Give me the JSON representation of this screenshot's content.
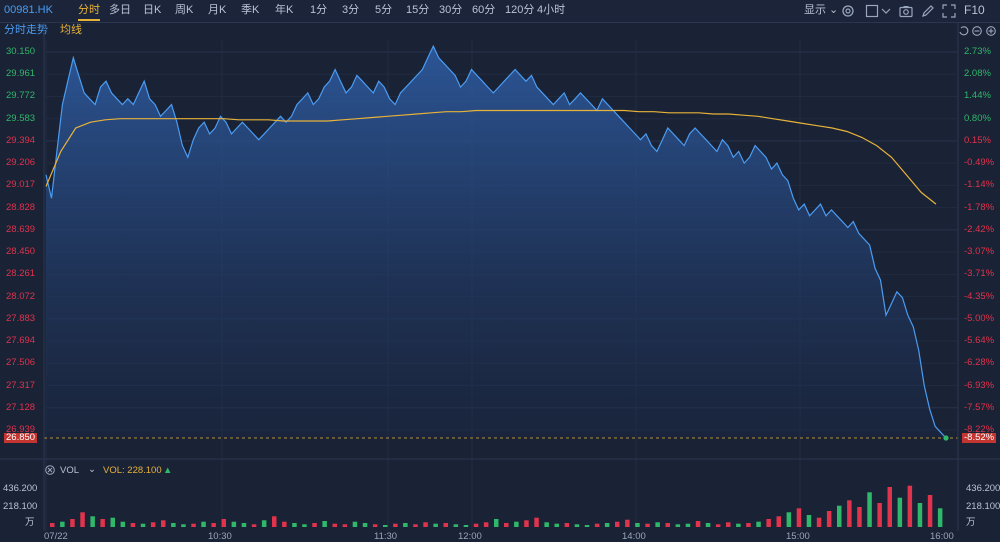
{
  "toolbar": {
    "symbol": "00981.HK",
    "periods": [
      "分时",
      "多日",
      "日K",
      "周K",
      "月K",
      "季K",
      "年K",
      "1分",
      "3分",
      "5分",
      "15分",
      "30分",
      "60分",
      "120分",
      "4小时"
    ],
    "active_period": "分时",
    "display_label": "显示",
    "fit_label": "F10"
  },
  "chart_header": {
    "mode_label": "分时走势",
    "avg_label": "均线"
  },
  "price_axis": {
    "ticks": [
      "30.150",
      "29.961",
      "29.772",
      "29.583",
      "29.394",
      "29.206",
      "29.017",
      "28.828",
      "28.639",
      "28.450",
      "28.261",
      "28.072",
      "27.883",
      "27.694",
      "27.506",
      "27.317",
      "27.128",
      "26.939"
    ],
    "current": "26.850"
  },
  "pct_axis": {
    "ticks": [
      "2.73%",
      "2.08%",
      "1.44%",
      "0.80%",
      "0.15%",
      "-0.49%",
      "-1.14%",
      "-1.78%",
      "-2.42%",
      "-3.07%",
      "-3.71%",
      "-4.35%",
      "-5.00%",
      "-5.64%",
      "-6.28%",
      "-6.93%",
      "-7.57%",
      "-8.22%"
    ],
    "current": "-8.52%"
  },
  "volume": {
    "label": "VOL",
    "value_label": "VOL: 228.100",
    "ticks": [
      "436.200",
      "218.100"
    ],
    "unit": "万"
  },
  "time_axis": [
    "07/22",
    "10:30",
    "11:30",
    "12:00",
    "14:00",
    "15:00",
    "16:00"
  ],
  "colors": {
    "bg": "#1a2235",
    "price_line": "#4a9cf2",
    "avg_line": "#e7b23a",
    "up": "#e0334c",
    "down": "#2fb869",
    "grid": "#253049"
  },
  "chart_data": {
    "type": "line",
    "ylim": [
      26.85,
      30.15
    ],
    "series": [
      {
        "name": "分时走势",
        "values": [
          29.1,
          28.9,
          29.3,
          29.7,
          29.9,
          30.1,
          29.95,
          29.8,
          29.75,
          29.7,
          29.85,
          29.9,
          29.8,
          29.75,
          29.7,
          29.75,
          29.7,
          29.8,
          29.9,
          29.75,
          29.7,
          29.6,
          29.65,
          29.7,
          29.55,
          29.35,
          29.25,
          29.4,
          29.5,
          29.55,
          29.45,
          29.5,
          29.6,
          29.55,
          29.45,
          29.5,
          29.55,
          29.5,
          29.45,
          29.4,
          29.45,
          29.5,
          29.55,
          29.6,
          29.55,
          29.6,
          29.7,
          29.75,
          29.8,
          29.7,
          29.75,
          29.85,
          29.9,
          30.0,
          29.9,
          29.8,
          29.85,
          29.95,
          29.9,
          29.85,
          29.8,
          29.9,
          29.85,
          29.75,
          29.7,
          29.8,
          29.85,
          29.9,
          29.95,
          30.0,
          30.1,
          30.2,
          30.1,
          30.05,
          30.0,
          29.95,
          29.85,
          29.9,
          30.0,
          29.95,
          29.9,
          29.85,
          29.8,
          29.85,
          29.9,
          29.95,
          30.0,
          29.95,
          29.9,
          29.95,
          29.85,
          29.8,
          29.75,
          29.7,
          29.75,
          29.8,
          29.7,
          29.75,
          29.8,
          29.75,
          29.7,
          29.65,
          29.75,
          29.7,
          29.65,
          29.6,
          29.55,
          29.5,
          29.45,
          29.4,
          29.45,
          29.35,
          29.3,
          29.4,
          29.5,
          29.45,
          29.4,
          29.35,
          29.45,
          29.5,
          29.45,
          29.4,
          29.35,
          29.3,
          29.4,
          29.35,
          29.25,
          29.3,
          29.2,
          29.25,
          29.35,
          29.3,
          29.25,
          29.15,
          29.2,
          29.1,
          29.05,
          28.9,
          28.8,
          28.85,
          28.75,
          28.8,
          28.85,
          28.75,
          28.8,
          28.75,
          28.7,
          28.65,
          28.7,
          28.6,
          28.55,
          28.5,
          28.3,
          28.2,
          27.9,
          28.0,
          28.1,
          28.05,
          27.9,
          27.8,
          27.6,
          27.3,
          27.1,
          26.95,
          26.9,
          26.85
        ]
      },
      {
        "name": "均线",
        "values": [
          29.0,
          29.3,
          29.5,
          29.55,
          29.57,
          29.58,
          29.58,
          29.58,
          29.58,
          29.58,
          29.58,
          29.58,
          29.58,
          29.57,
          29.57,
          29.57,
          29.56,
          29.56,
          29.56,
          29.56,
          29.57,
          29.58,
          29.59,
          29.6,
          29.61,
          29.62,
          29.63,
          29.64,
          29.64,
          29.65,
          29.65,
          29.65,
          29.65,
          29.65,
          29.65,
          29.65,
          29.65,
          29.65,
          29.65,
          29.65,
          29.64,
          29.64,
          29.63,
          29.63,
          29.63,
          29.62,
          29.62,
          29.61,
          29.6,
          29.58,
          29.56,
          29.54,
          29.52,
          29.5,
          29.47,
          29.42,
          29.35,
          29.25,
          29.1,
          28.95,
          28.85
        ]
      }
    ],
    "volume_values": [
      30,
      40,
      60,
      110,
      80,
      60,
      70,
      40,
      30,
      25,
      35,
      50,
      30,
      20,
      25,
      40,
      30,
      60,
      40,
      30,
      20,
      50,
      80,
      40,
      30,
      20,
      30,
      45,
      25,
      20,
      40,
      30,
      20,
      15,
      25,
      30,
      20,
      35,
      25,
      30,
      20,
      15,
      25,
      35,
      60,
      30,
      40,
      50,
      70,
      35,
      25,
      30,
      20,
      15,
      25,
      30,
      40,
      55,
      30,
      25,
      35,
      30,
      20,
      25,
      45,
      30,
      20,
      35,
      25,
      30,
      40,
      60,
      80,
      110,
      140,
      90,
      70,
      120,
      160,
      200,
      150,
      260,
      180,
      300,
      220,
      310,
      180,
      240,
      140
    ],
    "volume_up": [
      1,
      0,
      1,
      1,
      0,
      1,
      0,
      0,
      1,
      0,
      1,
      1,
      0,
      0,
      1,
      0,
      1,
      1,
      0,
      0,
      1,
      0,
      1,
      1,
      0,
      0,
      1,
      0,
      1,
      1,
      0,
      0,
      1,
      0,
      1,
      0,
      1,
      1,
      0,
      1,
      0,
      0,
      1,
      1,
      0,
      1,
      0,
      1,
      1,
      0,
      0,
      1,
      0,
      0,
      1,
      0,
      1,
      1,
      0,
      1,
      0,
      1,
      0,
      0,
      1,
      0,
      1,
      1,
      0,
      1,
      0,
      1,
      1,
      0,
      1,
      0,
      1,
      1,
      0,
      1,
      1,
      0,
      1,
      1,
      0,
      1,
      0,
      1,
      0
    ],
    "x_ticks": [
      "07/22",
      "10:30",
      "11:30",
      "12:00",
      "14:00",
      "15:00",
      "16:00"
    ]
  }
}
